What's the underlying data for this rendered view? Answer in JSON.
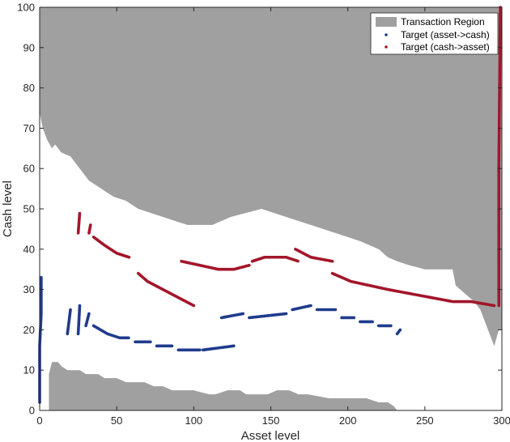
{
  "chart_data": {
    "type": "scatter",
    "title": "",
    "xlabel": "Asset level",
    "ylabel": "Cash level",
    "xlim": [
      0,
      300
    ],
    "ylim": [
      0,
      100
    ],
    "xticks": [
      "0",
      "50",
      "100",
      "150",
      "200",
      "250",
      "300"
    ],
    "yticks": [
      "0",
      "10",
      "20",
      "30",
      "40",
      "50",
      "60",
      "70",
      "80",
      "90",
      "100"
    ],
    "grid": false,
    "legend_placement": "top-right",
    "colors": {
      "region": "#a0a0a0",
      "asset_to_cash": "#1f3b8c",
      "cash_to_asset": "#a3162a"
    },
    "regions": [
      {
        "name": "Transaction Region",
        "upper_boundary": [
          [
            0,
            74
          ],
          [
            2,
            70
          ],
          [
            5,
            67
          ],
          [
            8,
            65
          ],
          [
            10,
            66
          ],
          [
            14,
            64
          ],
          [
            20,
            63
          ],
          [
            26,
            60
          ],
          [
            32,
            57
          ],
          [
            40,
            55
          ],
          [
            48,
            53
          ],
          [
            56,
            52
          ],
          [
            64,
            50
          ],
          [
            72,
            49
          ],
          [
            80,
            48
          ],
          [
            88,
            47
          ],
          [
            96,
            46
          ],
          [
            104,
            46
          ],
          [
            112,
            46
          ],
          [
            118,
            47
          ],
          [
            124,
            48
          ],
          [
            134,
            49
          ],
          [
            144,
            50
          ],
          [
            152,
            49
          ],
          [
            160,
            48
          ],
          [
            168,
            47
          ],
          [
            176,
            46
          ],
          [
            184,
            45
          ],
          [
            192,
            44
          ],
          [
            200,
            43
          ],
          [
            208,
            42
          ],
          [
            214,
            41
          ],
          [
            220,
            40
          ],
          [
            226,
            38
          ],
          [
            232,
            37
          ],
          [
            240,
            36
          ],
          [
            250,
            35
          ],
          [
            260,
            35
          ],
          [
            268,
            35
          ],
          [
            270,
            31
          ],
          [
            276,
            29
          ],
          [
            282,
            27
          ],
          [
            286,
            25
          ],
          [
            292,
            19
          ],
          [
            295,
            16
          ],
          [
            298,
            20
          ],
          [
            300,
            20
          ]
        ],
        "lower_boundary": [
          [
            6,
            0
          ],
          [
            6,
            9
          ],
          [
            8,
            12
          ],
          [
            12,
            12
          ],
          [
            14,
            11
          ],
          [
            18,
            10
          ],
          [
            26,
            10
          ],
          [
            30,
            9
          ],
          [
            38,
            9
          ],
          [
            42,
            8
          ],
          [
            50,
            8
          ],
          [
            56,
            7
          ],
          [
            68,
            7
          ],
          [
            74,
            6
          ],
          [
            80,
            6
          ],
          [
            86,
            5
          ],
          [
            100,
            5
          ],
          [
            110,
            4
          ],
          [
            114,
            4
          ],
          [
            122,
            5
          ],
          [
            130,
            5
          ],
          [
            134,
            4
          ],
          [
            148,
            4
          ],
          [
            154,
            5
          ],
          [
            162,
            5
          ],
          [
            168,
            4
          ],
          [
            174,
            4
          ],
          [
            188,
            3
          ],
          [
            200,
            3
          ],
          [
            212,
            3
          ],
          [
            220,
            2
          ],
          [
            226,
            2
          ],
          [
            230,
            1
          ],
          [
            232,
            0
          ]
        ]
      }
    ],
    "series": [
      {
        "name": "Target (asset->cash)",
        "segments": [
          [
            [
              0,
              2
            ],
            [
              0,
              16
            ],
            [
              1,
              24
            ],
            [
              1,
              33
            ]
          ],
          [
            [
              18,
              19
            ],
            [
              20,
              25
            ]
          ],
          [
            [
              25,
              19
            ],
            [
              26,
              26
            ]
          ],
          [
            [
              30,
              21
            ],
            [
              32,
              24
            ]
          ],
          [
            [
              35,
              21
            ],
            [
              44,
              19
            ],
            [
              52,
              18
            ],
            [
              58,
              18
            ]
          ],
          [
            [
              62,
              17
            ],
            [
              72,
              17
            ]
          ],
          [
            [
              76,
              16
            ],
            [
              86,
              16
            ]
          ],
          [
            [
              90,
              15
            ],
            [
              104,
              15
            ]
          ],
          [
            [
              106,
              15
            ],
            [
              126,
              16
            ]
          ],
          [
            [
              118,
              23
            ],
            [
              132,
              24
            ]
          ],
          [
            [
              136,
              23
            ],
            [
              160,
              24
            ]
          ],
          [
            [
              164,
              25
            ],
            [
              176,
              26
            ]
          ],
          [
            [
              180,
              25
            ],
            [
              192,
              25
            ]
          ],
          [
            [
              196,
              23
            ],
            [
              204,
              23
            ]
          ],
          [
            [
              208,
              22
            ],
            [
              216,
              22
            ]
          ],
          [
            [
              220,
              21
            ],
            [
              228,
              21
            ]
          ],
          [
            [
              232,
              19
            ],
            [
              234,
              20
            ]
          ]
        ]
      },
      {
        "name": "Target (cash-to-asset)",
        "segments": [
          [
            [
              25,
              44
            ],
            [
              26,
              49
            ]
          ],
          [
            [
              32,
              44
            ],
            [
              33,
              46
            ]
          ],
          [
            [
              35,
              43
            ],
            [
              42,
              41
            ],
            [
              50,
              39
            ],
            [
              58,
              38
            ]
          ],
          [
            [
              64,
              34
            ],
            [
              70,
              32
            ],
            [
              80,
              30
            ],
            [
              90,
              28
            ],
            [
              100,
              26
            ]
          ],
          [
            [
              92,
              37
            ],
            [
              104,
              36
            ],
            [
              116,
              35
            ],
            [
              126,
              35
            ],
            [
              136,
              36
            ]
          ],
          [
            [
              138,
              37
            ],
            [
              146,
              38
            ],
            [
              160,
              38
            ],
            [
              168,
              37
            ]
          ],
          [
            [
              166,
              40
            ],
            [
              176,
              38
            ],
            [
              190,
              37
            ]
          ],
          [
            [
              190,
              34
            ],
            [
              202,
              32
            ],
            [
              214,
              31
            ],
            [
              226,
              30
            ],
            [
              240,
              29
            ],
            [
              254,
              28
            ],
            [
              268,
              27
            ],
            [
              280,
              27
            ],
            [
              295,
              26
            ]
          ],
          [
            [
              298,
              26
            ],
            [
              298,
              60
            ],
            [
              299,
              100
            ]
          ]
        ]
      }
    ],
    "legend_entries": [
      "Transaction Region",
      "Target (asset->cash)",
      "Target (cash->asset)"
    ]
  }
}
